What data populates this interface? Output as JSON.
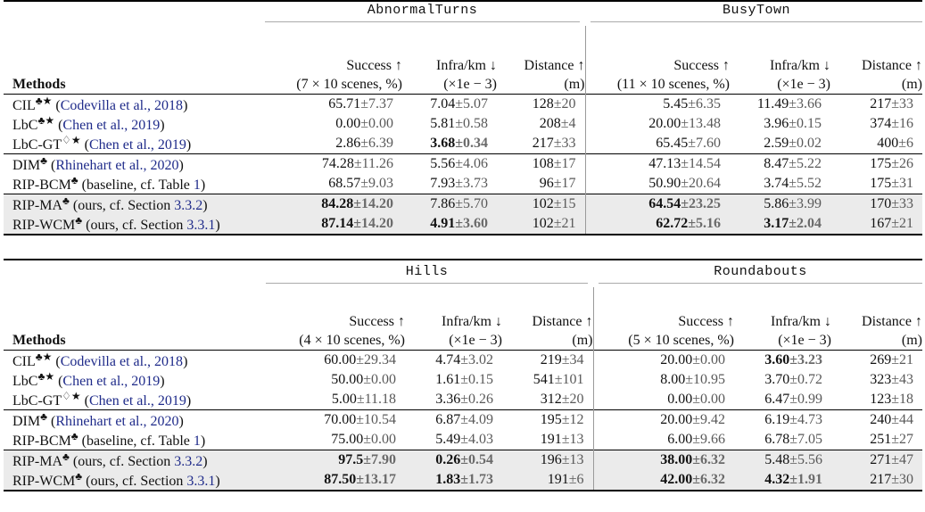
{
  "headers": {
    "methods": "Methods",
    "success": "Success ↑",
    "infra": "Infra/km ↓",
    "distance": "Distance ↑",
    "infra_unit": "(×1e − 3)",
    "distance_unit": "(m)"
  },
  "tables": [
    {
      "envs": [
        {
          "name": "AbnormalTurns",
          "scenes": "(7 × 10 scenes, %)"
        },
        {
          "name": "BusyTown",
          "scenes": "(11 × 10 scenes, %)"
        }
      ],
      "rows": [
        [
          {
            "m": "CIL",
            "sup": "♣★",
            "ref": "Codevilla et al., 2018",
            "pre": "(",
            "post": ")",
            "hl": false,
            "c": [
              {
                "v": "65.71",
                "s": "7.37",
                "b": false
              },
              {
                "v": "7.04",
                "s": "5.07",
                "b": false
              },
              {
                "v": "128",
                "s": "20",
                "b": false
              },
              {
                "v": "5.45",
                "s": "6.35",
                "b": false
              },
              {
                "v": "11.49",
                "s": "3.66",
                "b": false
              },
              {
                "v": "217",
                "s": "33",
                "b": false
              }
            ]
          },
          {
            "m": "LbC",
            "sup": "♣★",
            "ref": "Chen et al., 2019",
            "pre": "(",
            "post": ")",
            "hl": false,
            "c": [
              {
                "v": "0.00",
                "s": "0.00",
                "b": false
              },
              {
                "v": "5.81",
                "s": "0.58",
                "b": false
              },
              {
                "v": "208",
                "s": "4",
                "b": false
              },
              {
                "v": "20.00",
                "s": "13.48",
                "b": false
              },
              {
                "v": "3.96",
                "s": "0.15",
                "b": false
              },
              {
                "v": "374",
                "s": "16",
                "b": false
              }
            ]
          },
          {
            "m": "LbC-GT",
            "sup": "♢★",
            "ref": "Chen et al., 2019",
            "pre": "(",
            "post": ")",
            "hl": false,
            "c": [
              {
                "v": "2.86",
                "s": "6.39",
                "b": false
              },
              {
                "v": "3.68",
                "s": "0.34",
                "b": true
              },
              {
                "v": "217",
                "s": "33",
                "b": false
              },
              {
                "v": "65.45",
                "s": "7.60",
                "b": false
              },
              {
                "v": "2.59",
                "s": "0.02",
                "b": false
              },
              {
                "v": "400",
                "s": "6",
                "b": false
              }
            ]
          }
        ],
        [
          {
            "m": "DIM",
            "sup": "♣",
            "ref": "Rhinehart et al., 2020",
            "pre": "(",
            "post": ")",
            "hl": false,
            "c": [
              {
                "v": "74.28",
                "s": "11.26",
                "b": false
              },
              {
                "v": "5.56",
                "s": "4.06",
                "b": false
              },
              {
                "v": "108",
                "s": "17",
                "b": false
              },
              {
                "v": "47.13",
                "s": "14.54",
                "b": false
              },
              {
                "v": "8.47",
                "s": "5.22",
                "b": false
              },
              {
                "v": "175",
                "s": "26",
                "b": false
              }
            ]
          },
          {
            "m": "RIP-BCM",
            "sup": "♣",
            "ref": "1",
            "pre": "(baseline, cf. Table ",
            "post": ")",
            "hl": false,
            "c": [
              {
                "v": "68.57",
                "s": "9.03",
                "b": false
              },
              {
                "v": "7.93",
                "s": "3.73",
                "b": false
              },
              {
                "v": "96",
                "s": "17",
                "b": false
              },
              {
                "v": "50.90",
                "s": "20.64",
                "b": false
              },
              {
                "v": "3.74",
                "s": "5.52",
                "b": false
              },
              {
                "v": "175",
                "s": "31",
                "b": false
              }
            ]
          }
        ],
        [
          {
            "m": "RIP-MA",
            "sup": "♣",
            "ref": "3.3.2",
            "pre": "(ours, cf. Section ",
            "post": ")",
            "hl": true,
            "c": [
              {
                "v": "84.28",
                "s": "14.20",
                "b": true
              },
              {
                "v": "7.86",
                "s": "5.70",
                "b": false
              },
              {
                "v": "102",
                "s": "15",
                "b": false
              },
              {
                "v": "64.54",
                "s": "23.25",
                "b": true
              },
              {
                "v": "5.86",
                "s": "3.99",
                "b": false
              },
              {
                "v": "170",
                "s": "33",
                "b": false
              }
            ]
          },
          {
            "m": "RIP-WCM",
            "sup": "♣",
            "ref": "3.3.1",
            "pre": "(ours, cf. Section ",
            "post": ")",
            "hl": true,
            "c": [
              {
                "v": "87.14",
                "s": "14.20",
                "b": true
              },
              {
                "v": "4.91",
                "s": "3.60",
                "b": true
              },
              {
                "v": "102",
                "s": "21",
                "b": false
              },
              {
                "v": "62.72",
                "s": "5.16",
                "b": true
              },
              {
                "v": "3.17",
                "s": "2.04",
                "b": true
              },
              {
                "v": "167",
                "s": "21",
                "b": false
              }
            ]
          }
        ]
      ]
    },
    {
      "envs": [
        {
          "name": "Hills",
          "scenes": "(4 × 10 scenes, %)"
        },
        {
          "name": "Roundabouts",
          "scenes": "(5 × 10 scenes, %)"
        }
      ],
      "rows": [
        [
          {
            "m": "CIL",
            "sup": "♣★",
            "ref": "Codevilla et al., 2018",
            "pre": "(",
            "post": ")",
            "hl": false,
            "c": [
              {
                "v": "60.00",
                "s": "29.34",
                "b": false
              },
              {
                "v": "4.74",
                "s": "3.02",
                "b": false
              },
              {
                "v": "219",
                "s": "34",
                "b": false
              },
              {
                "v": "20.00",
                "s": "0.00",
                "b": false
              },
              {
                "v": "3.60",
                "s": "3.23",
                "b": true
              },
              {
                "v": "269",
                "s": "21",
                "b": false
              }
            ]
          },
          {
            "m": "LbC",
            "sup": "♣★",
            "ref": "Chen et al., 2019",
            "pre": "(",
            "post": ")",
            "hl": false,
            "c": [
              {
                "v": "50.00",
                "s": "0.00",
                "b": false
              },
              {
                "v": "1.61",
                "s": "0.15",
                "b": false
              },
              {
                "v": "541",
                "s": "101",
                "b": false
              },
              {
                "v": "8.00",
                "s": "10.95",
                "b": false
              },
              {
                "v": "3.70",
                "s": "0.72",
                "b": false
              },
              {
                "v": "323",
                "s": "43",
                "b": false
              }
            ]
          },
          {
            "m": "LbC-GT",
            "sup": "♢★",
            "ref": "Chen et al., 2019",
            "pre": "(",
            "post": ")",
            "hl": false,
            "c": [
              {
                "v": "5.00",
                "s": "11.18",
                "b": false
              },
              {
                "v": "3.36",
                "s": "0.26",
                "b": false
              },
              {
                "v": "312",
                "s": "20",
                "b": false
              },
              {
                "v": "0.00",
                "s": "0.00",
                "b": false
              },
              {
                "v": "6.47",
                "s": "0.99",
                "b": false
              },
              {
                "v": "123",
                "s": "18",
                "b": false
              }
            ]
          }
        ],
        [
          {
            "m": "DIM",
            "sup": "♣",
            "ref": "Rhinehart et al., 2020",
            "pre": "(",
            "post": ")",
            "hl": false,
            "c": [
              {
                "v": "70.00",
                "s": "10.54",
                "b": false
              },
              {
                "v": "6.87",
                "s": "4.09",
                "b": false
              },
              {
                "v": "195",
                "s": "12",
                "b": false
              },
              {
                "v": "20.00",
                "s": "9.42",
                "b": false
              },
              {
                "v": "6.19",
                "s": "4.73",
                "b": false
              },
              {
                "v": "240",
                "s": "44",
                "b": false
              }
            ]
          },
          {
            "m": "RIP-BCM",
            "sup": "♣",
            "ref": "1",
            "pre": "(baseline, cf. Table ",
            "post": ")",
            "hl": false,
            "c": [
              {
                "v": "75.00",
                "s": "0.00",
                "b": false
              },
              {
                "v": "5.49",
                "s": "4.03",
                "b": false
              },
              {
                "v": "191",
                "s": "13",
                "b": false
              },
              {
                "v": "6.00",
                "s": "9.66",
                "b": false
              },
              {
                "v": "6.78",
                "s": "7.05",
                "b": false
              },
              {
                "v": "251",
                "s": "27",
                "b": false
              }
            ]
          }
        ],
        [
          {
            "m": "RIP-MA",
            "sup": "♣",
            "ref": "3.3.2",
            "pre": "(ours, cf. Section ",
            "post": ")",
            "hl": true,
            "c": [
              {
                "v": "97.5",
                "s": "7.90",
                "b": true
              },
              {
                "v": "0.26",
                "s": "0.54",
                "b": true
              },
              {
                "v": "196",
                "s": "13",
                "b": false
              },
              {
                "v": "38.00",
                "s": "6.32",
                "b": true
              },
              {
                "v": "5.48",
                "s": "5.56",
                "b": false
              },
              {
                "v": "271",
                "s": "47",
                "b": false
              }
            ]
          },
          {
            "m": "RIP-WCM",
            "sup": "♣",
            "ref": "3.3.1",
            "pre": "(ours, cf. Section ",
            "post": ")",
            "hl": true,
            "c": [
              {
                "v": "87.50",
                "s": "13.17",
                "b": true
              },
              {
                "v": "1.83",
                "s": "1.73",
                "b": true
              },
              {
                "v": "191",
                "s": "6",
                "b": false
              },
              {
                "v": "42.00",
                "s": "6.32",
                "b": true
              },
              {
                "v": "4.32",
                "s": "1.91",
                "b": true
              },
              {
                "v": "217",
                "s": "30",
                "b": false
              }
            ]
          }
        ]
      ]
    }
  ]
}
